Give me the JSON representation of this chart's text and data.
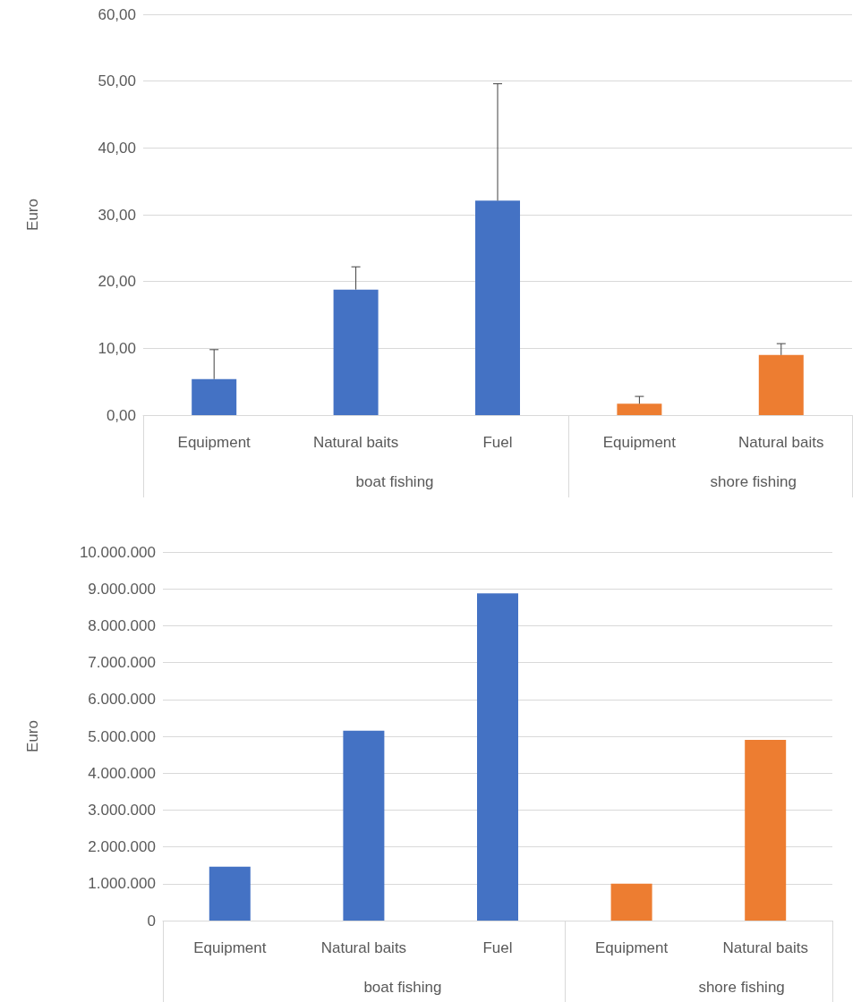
{
  "chart_data": [
    {
      "type": "bar",
      "ylabel": "Euro",
      "categories": [
        "Equipment",
        "Natural baits",
        "Fuel",
        "Equipment",
        "Natural baits"
      ],
      "annotations": [
        "boat fishing",
        "shore fishing"
      ],
      "series": [
        {
          "color": "#4472c4",
          "values": [
            5.4,
            18.8,
            32.1,
            null,
            null
          ],
          "errors": [
            [
              5.4,
              9.8
            ],
            [
              18.8,
              22.2
            ],
            [
              32.1,
              49.6
            ],
            null,
            null
          ]
        },
        {
          "color": "#ed7d31",
          "values": [
            null,
            null,
            null,
            1.7,
            9.0
          ],
          "errors": [
            null,
            null,
            null,
            [
              1.7,
              2.8
            ],
            [
              9.0,
              10.7
            ]
          ]
        }
      ],
      "ylim": [
        0,
        60
      ],
      "yticks": [
        {
          "value": 0,
          "label": "0,00"
        },
        {
          "value": 10,
          "label": "10,00"
        },
        {
          "value": 20,
          "label": "20,00"
        },
        {
          "value": 30,
          "label": "30,00"
        },
        {
          "value": 40,
          "label": "40,00"
        },
        {
          "value": 50,
          "label": "50,00"
        },
        {
          "value": 60,
          "label": "60,00"
        }
      ],
      "grid": "y"
    },
    {
      "type": "bar",
      "ylabel": "Euro",
      "categories": [
        "Equipment",
        "Natural baits",
        "Fuel",
        "Equipment",
        "Natural baits"
      ],
      "annotations": [
        "boat fishing",
        "shore fishing"
      ],
      "series": [
        {
          "color": "#4472c4",
          "values": [
            1460000,
            5150000,
            8880000,
            null,
            null
          ]
        },
        {
          "color": "#ed7d31",
          "values": [
            null,
            null,
            null,
            1000000,
            4900000
          ]
        }
      ],
      "ylim": [
        0,
        10000000
      ],
      "yticks": [
        0,
        {
          "value": 1000000,
          "label": "1.000.000"
        },
        {
          "value": 2000000,
          "label": "2.000.000"
        },
        {
          "value": 3000000,
          "label": "3.000.000"
        },
        {
          "value": 4000000,
          "label": "4.000.000"
        },
        {
          "value": 5000000,
          "label": "5.000.000"
        },
        {
          "value": 6000000,
          "label": "6.000.000"
        },
        {
          "value": 7000000,
          "label": "7.000.000"
        },
        {
          "value": 8000000,
          "label": "8.000.000"
        },
        {
          "value": 9000000,
          "label": "9.000.000"
        },
        {
          "value": 10000000,
          "label": "10.000.000"
        }
      ],
      "grid": "y"
    }
  ]
}
